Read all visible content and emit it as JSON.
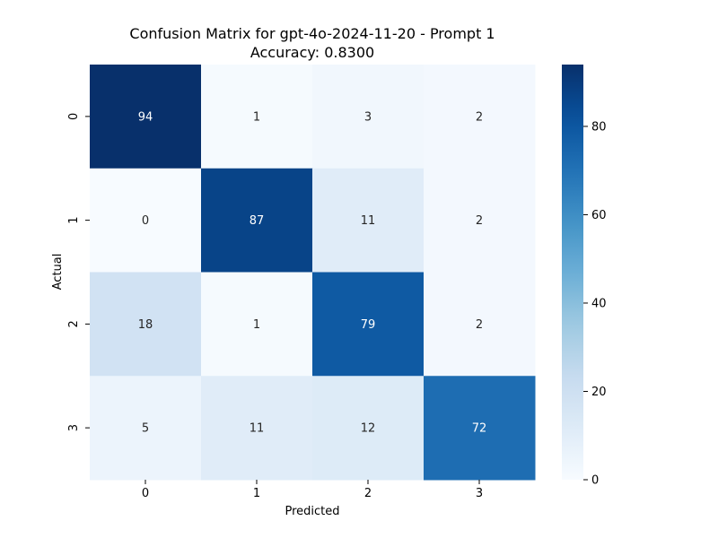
{
  "chart_data": {
    "type": "heatmap",
    "title": "Confusion Matrix for gpt-4o-2024-11-20 - Prompt 1",
    "subtitle": "Accuracy: 0.8300",
    "xlabel": "Predicted",
    "ylabel": "Actual",
    "x_categories": [
      "0",
      "1",
      "2",
      "3"
    ],
    "y_categories": [
      "0",
      "1",
      "2",
      "3"
    ],
    "values": [
      [
        94,
        1,
        3,
        2
      ],
      [
        0,
        87,
        11,
        2
      ],
      [
        18,
        1,
        79,
        2
      ],
      [
        5,
        11,
        12,
        72
      ]
    ],
    "colormap": "Blues",
    "value_range": [
      0,
      94
    ],
    "colorbar_ticks": [
      "0",
      "20",
      "40",
      "60",
      "80"
    ],
    "colorbar_tick_values": [
      0,
      20,
      40,
      60,
      80
    ],
    "annotation_text_dark": "#262626",
    "annotation_text_light": "#ffffff",
    "grid": false,
    "legend": "colorbar-right"
  }
}
